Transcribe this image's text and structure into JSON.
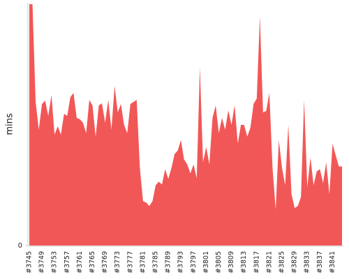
{
  "chart_data": {
    "type": "area",
    "y_label": "mins",
    "color": "#f25757",
    "ylim": [
      0,
      35
    ],
    "yticks": [
      0
    ],
    "categories": [
      "#3745",
      null,
      null,
      null,
      "#3749",
      null,
      null,
      null,
      "#3753",
      null,
      null,
      null,
      "#3757",
      null,
      null,
      null,
      "#3761",
      null,
      null,
      null,
      "#3765",
      null,
      null,
      null,
      "#3769",
      null,
      null,
      null,
      "#3773",
      null,
      null,
      null,
      "#3777",
      null,
      null,
      null,
      "#3781",
      null,
      null,
      null,
      "#3785",
      null,
      null,
      null,
      "#3789",
      null,
      null,
      null,
      "#3793",
      null,
      null,
      null,
      "#3797",
      null,
      null,
      null,
      "#3801",
      null,
      null,
      null,
      "#3805",
      null,
      null,
      null,
      "#3809",
      null,
      null,
      null,
      "#3813",
      null,
      null,
      null,
      "#3817",
      null,
      null,
      null,
      "#3821",
      null,
      null,
      null,
      "#3825",
      null,
      null,
      null,
      "#3829",
      null,
      null,
      null,
      "#3833",
      null,
      null,
      null,
      "#3837",
      null,
      null,
      null,
      "#3841",
      null,
      null,
      null
    ],
    "values": [
      34.8,
      34.8,
      20.7,
      16.7,
      20.4,
      20.9,
      18.7,
      21.7,
      16.0,
      17.2,
      16.0,
      19.0,
      18.7,
      21.4,
      22.0,
      18.4,
      18.2,
      17.7,
      16.2,
      21.0,
      20.2,
      15.7,
      20.2,
      20.5,
      17.7,
      21.0,
      16.7,
      23.0,
      19.2,
      20.4,
      17.4,
      16.2,
      20.4,
      20.7,
      21.0,
      11.2,
      6.4,
      6.2,
      5.7,
      6.4,
      8.7,
      9.2,
      8.8,
      11.0,
      9.6,
      11.2,
      13.2,
      13.7,
      15.2,
      12.4,
      11.7,
      10.4,
      11.7,
      9.7,
      25.7,
      12.0,
      14.2,
      11.7,
      18.4,
      20.2,
      16.2,
      18.4,
      16.7,
      19.5,
      17.4,
      20.2,
      14.7,
      17.4,
      17.4,
      15.7,
      17.0,
      20.4,
      21.2,
      33.0,
      19.2,
      19.4,
      22.0,
      11.2,
      5.2,
      15.2,
      11.2,
      8.7,
      17.4,
      7.4,
      5.4,
      5.7,
      7.0,
      21.0,
      8.4,
      12.7,
      8.7,
      10.7,
      11.0,
      9.0,
      12.0,
      7.4,
      14.7,
      13.0,
      11.4,
      11.4
    ]
  }
}
